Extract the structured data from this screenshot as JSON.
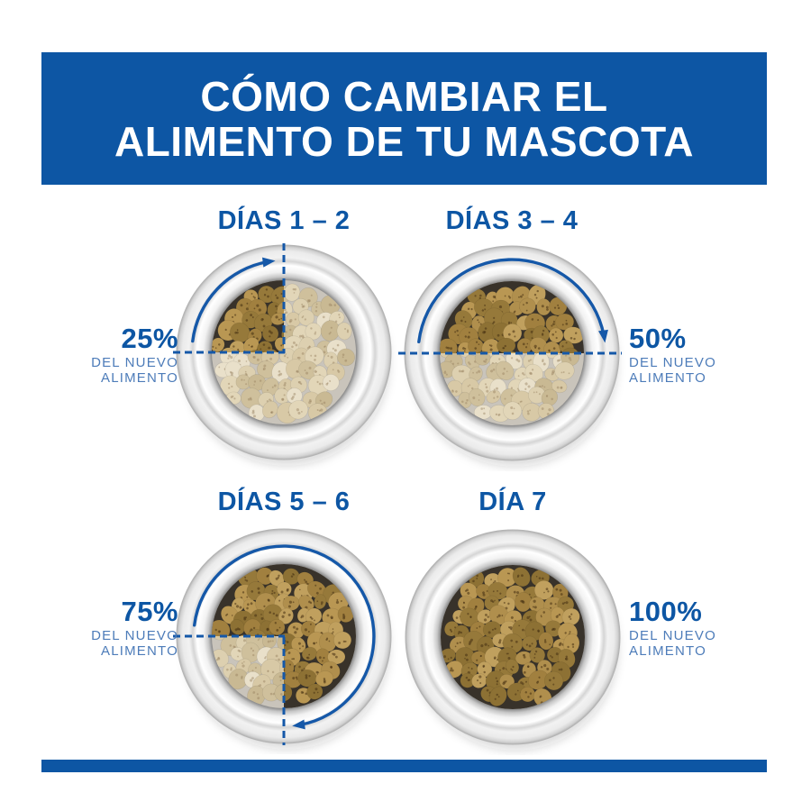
{
  "header": {
    "title": [
      "CÓMO CAMBIAR EL",
      "ALIMENTO DE TU MASCOTA"
    ]
  },
  "colors": {
    "brand_blue": "#0d56a4",
    "sub_label_blue": "#4d7cb9",
    "arrow_blue": "#1558a8",
    "bowl_inner_new": "#38322a",
    "bowl_inner_old": "#c9c4bb",
    "kibble_new": [
      "#b08f4d",
      "#a1803f",
      "#c0a05e",
      "#96793a",
      "#b99753",
      "#8d7134"
    ],
    "kibble_old": [
      "#e2d6b8",
      "#d8c9a6",
      "#e9e0ca",
      "#cfc09c",
      "#ddd0b0",
      "#c9b993"
    ],
    "speckle_new": "rgba(70,48,18,0.55)",
    "speckle_old": "rgba(150,128,95,0.45)"
  },
  "bowls": [
    {
      "day_label": "DÍAS 1 – 2",
      "percent": "25%",
      "caption_line1": "DEL NUEVO",
      "caption_line2": "ALIMENTO",
      "fraction": 0.25,
      "label_side": "left"
    },
    {
      "day_label": "DÍAS 3 – 4",
      "percent": "50%",
      "caption_line1": "DEL NUEVO",
      "caption_line2": "ALIMENTO",
      "fraction": 0.5,
      "label_side": "right"
    },
    {
      "day_label": "DÍAS 5 – 6",
      "percent": "75%",
      "caption_line1": "DEL NUEVO",
      "caption_line2": "ALIMENTO",
      "fraction": 0.75,
      "label_side": "left"
    },
    {
      "day_label": "DÍA 7",
      "percent": "100%",
      "caption_line1": "DEL NUEVO",
      "caption_line2": "ALIMENTO",
      "fraction": 1,
      "label_side": "right"
    }
  ]
}
